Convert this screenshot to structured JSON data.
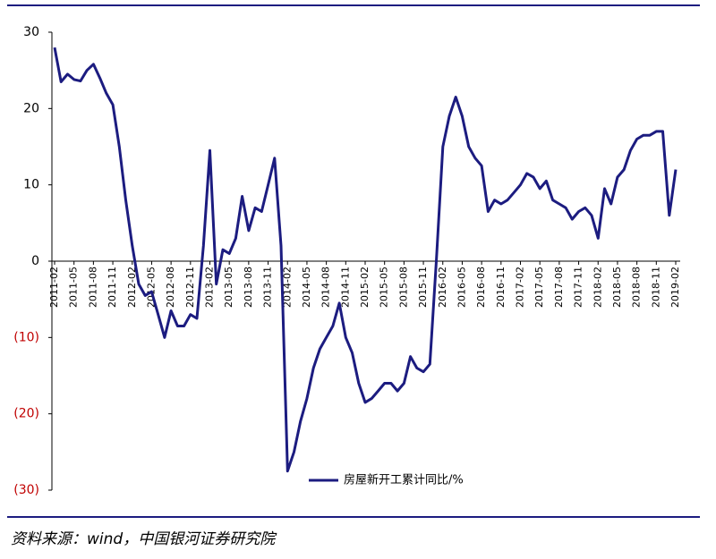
{
  "chart_data": {
    "type": "line",
    "categories": [
      "2011-02",
      null,
      null,
      "2011-05",
      null,
      null,
      "2011-08",
      null,
      null,
      "2011-11",
      null,
      null,
      "2012-02",
      null,
      null,
      "2012-05",
      null,
      null,
      "2012-08",
      null,
      null,
      "2012-11",
      null,
      null,
      "2013-02",
      null,
      null,
      "2013-05",
      null,
      null,
      "2013-08",
      null,
      null,
      "2013-11",
      null,
      null,
      "2014-02",
      null,
      null,
      "2014-05",
      null,
      null,
      "2014-08",
      null,
      null,
      "2014-11",
      null,
      null,
      "2015-02",
      null,
      null,
      "2015-05",
      null,
      null,
      "2015-08",
      null,
      null,
      "2015-11",
      null,
      null,
      "2016-02",
      null,
      null,
      "2016-05",
      null,
      null,
      "2016-08",
      null,
      null,
      "2016-11",
      null,
      null,
      "2017-02",
      null,
      null,
      "2017-05",
      null,
      null,
      "2017-08",
      null,
      null,
      "2017-11",
      null,
      null,
      "2018-02",
      null,
      null,
      "2018-05",
      null,
      null,
      "2018-08",
      null,
      null,
      "2018-11",
      null,
      null,
      "2019-02"
    ],
    "series": [
      {
        "name": "房屋新开工累计同比/%",
        "color": "#1c1c80",
        "values": [
          28,
          23.5,
          24.5,
          23.8,
          23.6,
          25,
          25.8,
          24,
          22,
          20.5,
          15,
          8,
          2,
          -3,
          -4.5,
          -4,
          -7,
          -10,
          -6.5,
          -8.5,
          -8.5,
          -7,
          -7.5,
          2,
          14.5,
          -3,
          1.5,
          1,
          3,
          8.5,
          4,
          7,
          6.5,
          10,
          13.5,
          2,
          -27.5,
          -25,
          -21,
          -18,
          -14,
          -11.5,
          -10,
          -8.5,
          -5.5,
          -10,
          -12,
          -16,
          -18.5,
          -18,
          -17,
          -16,
          -16,
          -17,
          -16,
          -12.5,
          -14,
          -14.5,
          -13.5,
          0,
          15,
          19,
          21.5,
          19,
          15,
          13.5,
          12.5,
          6.5,
          8,
          7.5,
          8,
          9,
          10,
          11.5,
          11,
          9.5,
          10.5,
          8,
          7.5,
          7,
          5.5,
          6.5,
          7,
          6,
          3,
          9.5,
          7.5,
          11,
          12,
          14.5,
          16,
          16.5,
          16.5,
          17,
          17,
          6,
          12
        ]
      }
    ],
    "ylim": [
      -30,
      30
    ],
    "yticks": [
      {
        "value": -30,
        "label": "(30)"
      },
      {
        "value": -20,
        "label": "(20)"
      },
      {
        "value": -10,
        "label": "(10)"
      },
      0,
      10,
      20,
      30
    ],
    "negative_tick_color": "#c00000",
    "source": "资料来源：wind，中国银河证券研究院"
  }
}
